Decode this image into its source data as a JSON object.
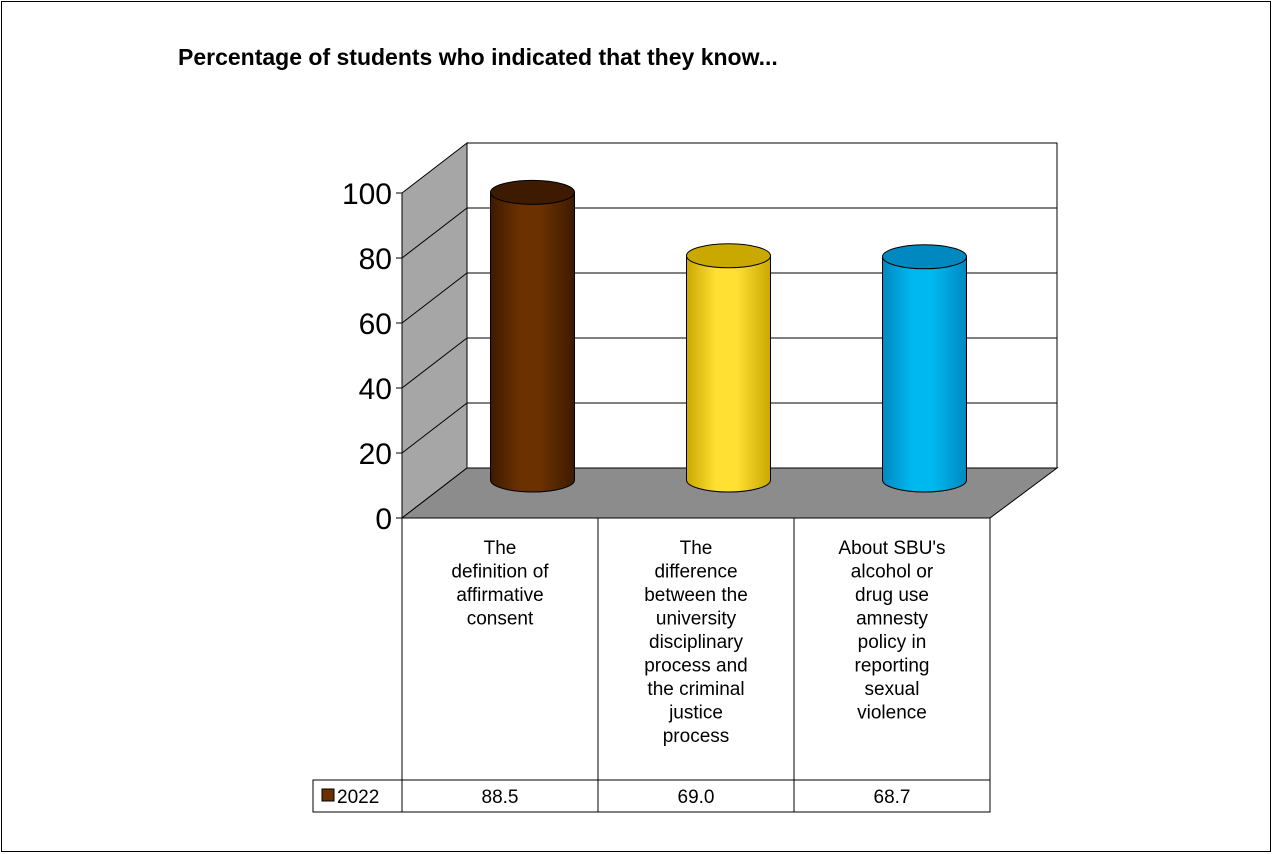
{
  "chart_data": {
    "type": "bar",
    "title": "Percentage of students who indicated that they know...",
    "categories": [
      "The definition of affirmative consent",
      "The difference between the university disciplinary process and the criminal justice process",
      "About SBU's alcohol or drug use amnesty policy in reporting sexual violence"
    ],
    "category_lines": [
      [
        "The",
        "definition of",
        "affirmative",
        "consent"
      ],
      [
        "The",
        "difference",
        "between the",
        "university",
        "disciplinary",
        "process and",
        "the criminal",
        "justice",
        "process"
      ],
      [
        "About SBU's",
        "alcohol or",
        "drug use",
        "amnesty",
        "policy in",
        "reporting",
        "sexual",
        "violence"
      ]
    ],
    "series": [
      {
        "name": "2022",
        "values": [
          88.5,
          69.0,
          68.7
        ],
        "labels": [
          "88.5",
          "69.0",
          "68.7"
        ]
      }
    ],
    "ylim": [
      0,
      100
    ],
    "yticks": [
      0,
      20,
      40,
      60,
      80,
      100
    ],
    "grid": true,
    "legend": "data-table",
    "bar_colors": [
      "#6b3100",
      "#ffe033",
      "#00b8f0"
    ],
    "bar_shades": [
      "#3d1a00",
      "#c9a800",
      "#0088c0"
    ]
  }
}
